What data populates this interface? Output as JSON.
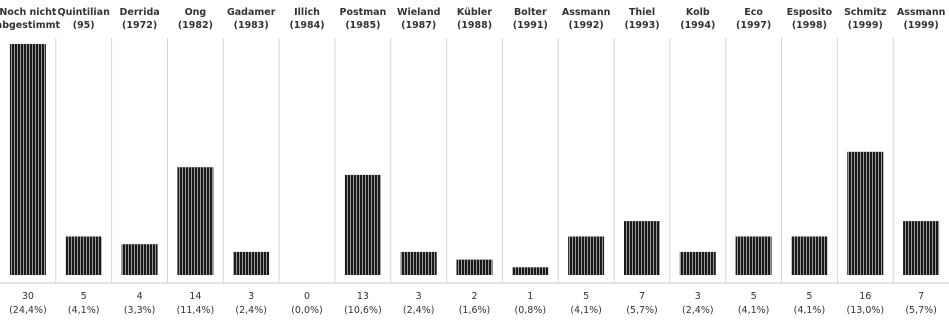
{
  "chart_data": {
    "type": "bar",
    "title": "",
    "xlabel": "",
    "ylabel": "",
    "ylim": [
      0,
      30
    ],
    "grid": false,
    "categories": [
      [
        "Noch nicht",
        "abgestimmt"
      ],
      [
        "Quintilian",
        "(95)"
      ],
      [
        "Derrida",
        "(1972)"
      ],
      [
        "Ong",
        "(1982)"
      ],
      [
        "Gadamer",
        "(1983)"
      ],
      [
        "Illich",
        "(1984)"
      ],
      [
        "Postman",
        "(1985)"
      ],
      [
        "Wieland",
        "(1987)"
      ],
      [
        "Kübler",
        "(1988)"
      ],
      [
        "Bolter",
        "(1991)"
      ],
      [
        "Assmann",
        "(1992)"
      ],
      [
        "Thiel",
        "(1993)"
      ],
      [
        "Kolb",
        "(1994)"
      ],
      [
        "Eco",
        "(1997)"
      ],
      [
        "Esposito",
        "(1998)"
      ],
      [
        "Schmitz",
        "(1999)"
      ],
      [
        "Assmann",
        "(1999)"
      ]
    ],
    "values": [
      30,
      5,
      4,
      14,
      3,
      0,
      13,
      3,
      2,
      1,
      5,
      7,
      3,
      5,
      5,
      16,
      7
    ],
    "value_labels": [
      "30",
      "5",
      "4",
      "14",
      "3",
      "0",
      "13",
      "3",
      "2",
      "1",
      "5",
      "7",
      "3",
      "5",
      "5",
      "16",
      "7"
    ],
    "percent_labels": [
      "(24,4%)",
      "(4,1%)",
      "(3,3%)",
      "(11,4%)",
      "(2,4%)",
      "(0,0%)",
      "(10,6%)",
      "(2,4%)",
      "(1,6%)",
      "(0,8%)",
      "(4,1%)",
      "(5,7%)",
      "(2,4%)",
      "(4,1%)",
      "(4,1%)",
      "(13,0%)",
      "(5,7%)"
    ],
    "colors": {
      "bar": "#1a1a1a",
      "stripe": "#ffffff",
      "separator": "#d6d6d6"
    }
  }
}
